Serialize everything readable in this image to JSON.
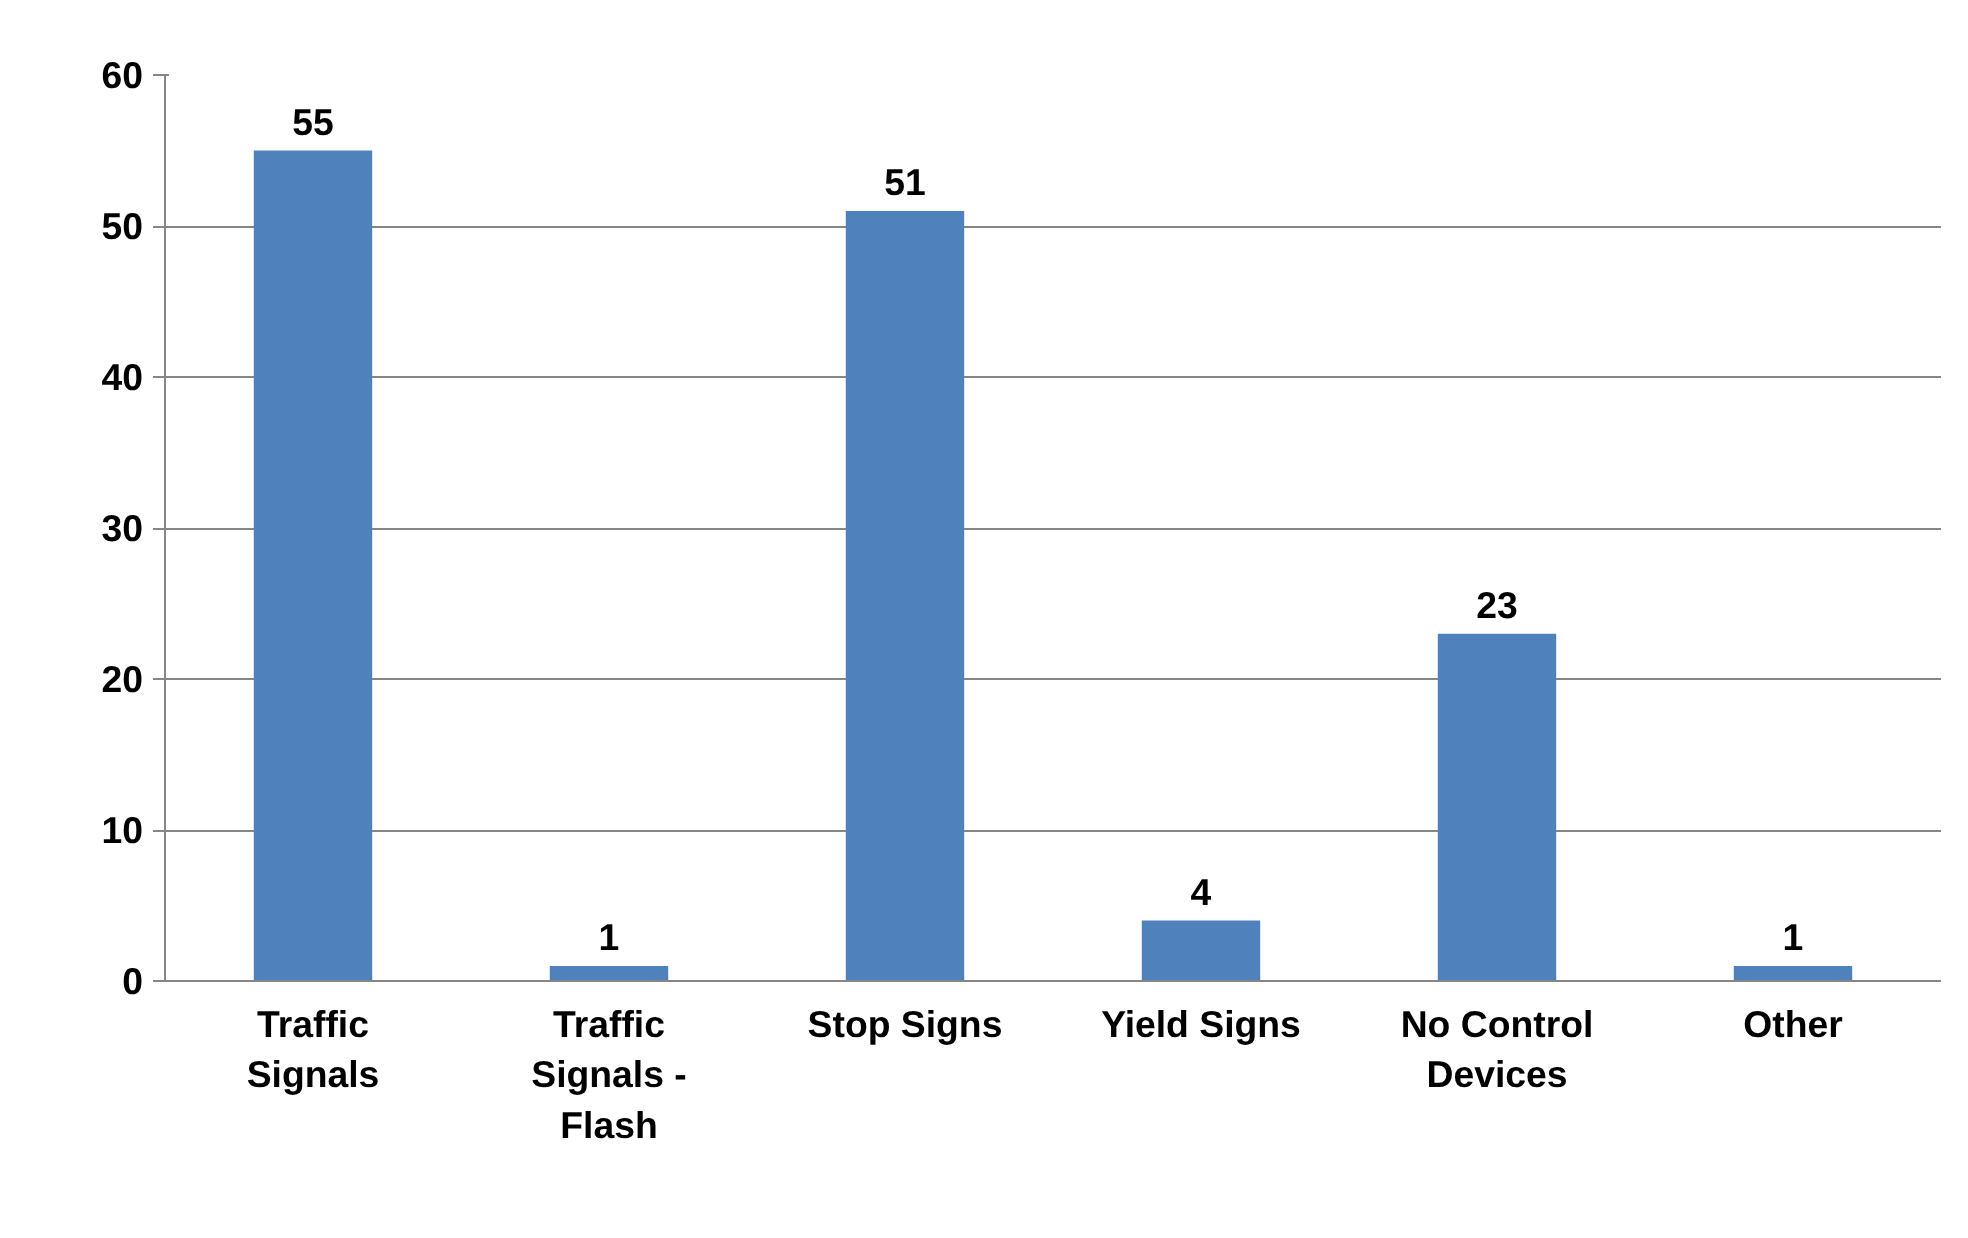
{
  "chart_data": {
    "type": "bar",
    "categories": [
      "Traffic Signals",
      "Traffic Signals - Flash",
      "Stop Signs",
      "Yield Signs",
      "No Control Devices",
      "Other"
    ],
    "values": [
      55,
      1,
      51,
      4,
      23,
      1
    ],
    "color": "#4f81bd",
    "ylim": [
      0,
      60
    ],
    "yticks": [
      0,
      10,
      20,
      30,
      40,
      50,
      60
    ],
    "grid": "y",
    "data_labels": true
  }
}
